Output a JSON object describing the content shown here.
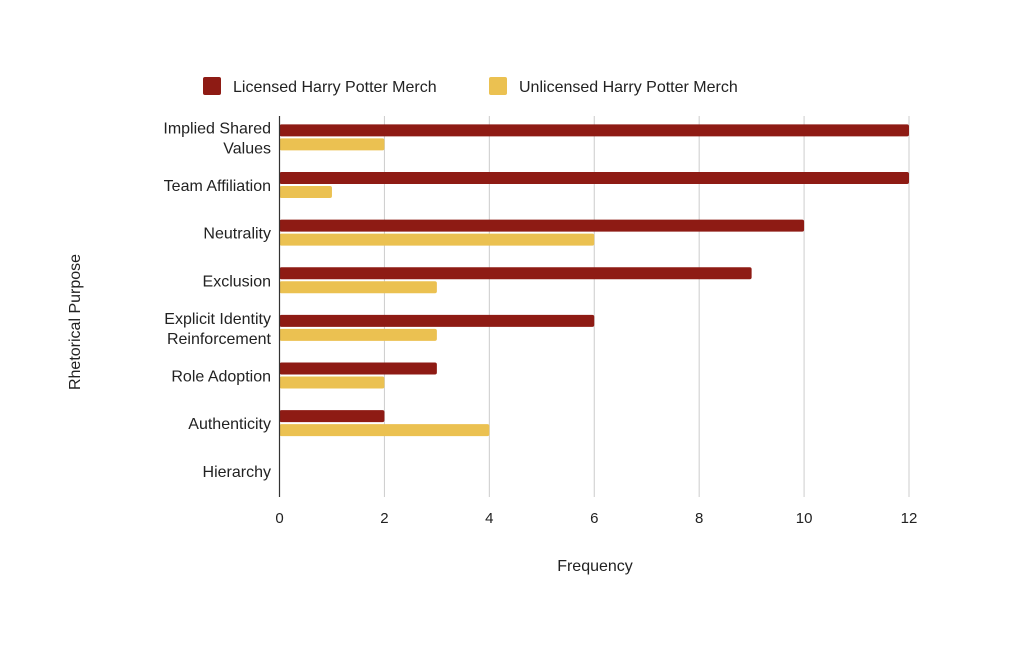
{
  "chart_data": {
    "type": "bar",
    "orientation": "horizontal",
    "title": "",
    "xlabel": "Frequency",
    "ylabel": "Rhetorical Purpose",
    "xlim": [
      0,
      12
    ],
    "xticks": [
      0,
      2,
      4,
      6,
      8,
      10,
      12
    ],
    "grid": "vertical",
    "legend_position": "top",
    "categories": [
      [
        "Implied Shared",
        "Values"
      ],
      [
        "Team Affiliation"
      ],
      [
        "Neutrality"
      ],
      [
        "Exclusion"
      ],
      [
        "Explicit Identity",
        "Reinforcement"
      ],
      [
        "Role Adoption"
      ],
      [
        "Authenticity"
      ],
      [
        "Hierarchy"
      ]
    ],
    "series": [
      {
        "name": "Licensed Harry Potter Merch",
        "color": "#8E1B14",
        "values": [
          12,
          12,
          10,
          9,
          6,
          3,
          2,
          0
        ]
      },
      {
        "name": "Unlicensed Harry Potter Merch",
        "color": "#EBC151",
        "values": [
          2,
          1,
          6,
          3,
          3,
          2,
          4,
          0
        ]
      }
    ]
  }
}
